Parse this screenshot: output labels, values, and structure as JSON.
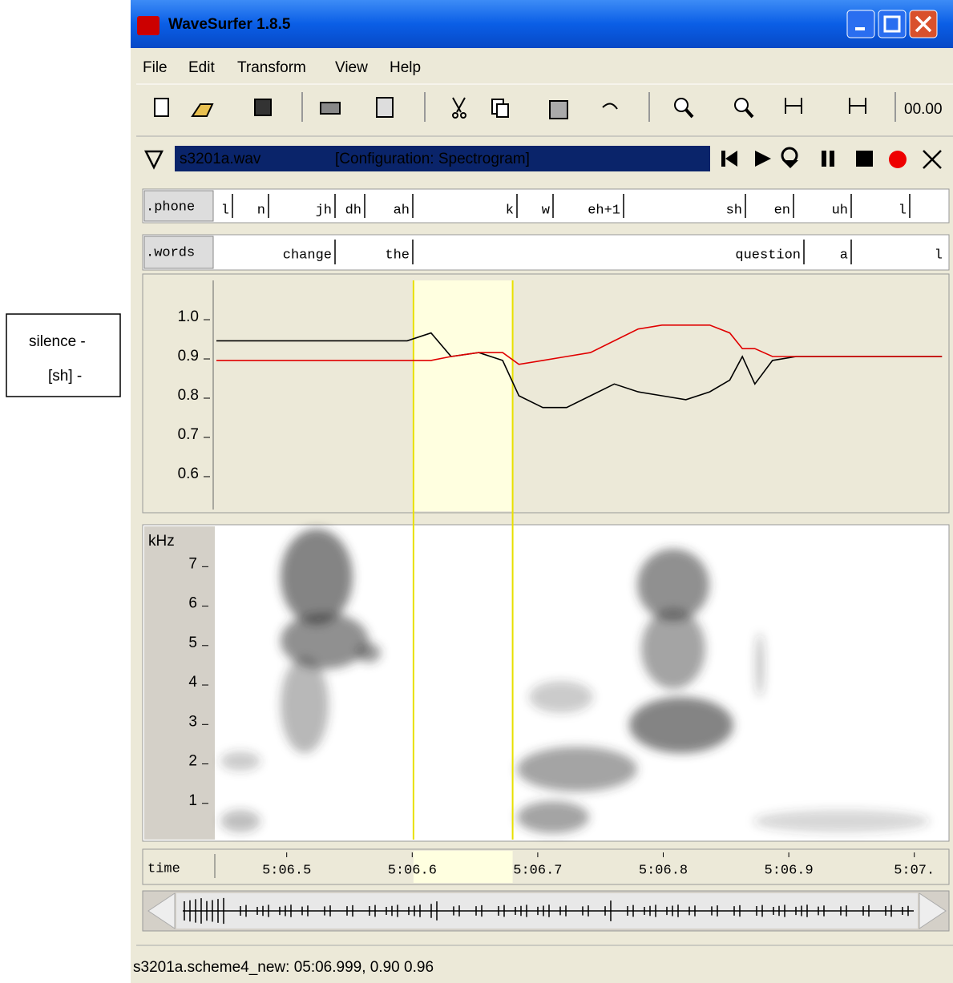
{
  "legend_box": {
    "lines": [
      "silence -",
      "[sh] -"
    ]
  },
  "window": {
    "title": "WaveSurfer 1.8.5"
  },
  "menu": [
    "File",
    "Edit",
    "Transform",
    "View",
    "Help"
  ],
  "toolbar": {
    "time": "00.00"
  },
  "sound_bar": {
    "file": "s3201a.wav",
    "configuration": "[Configuration: Spectrogram]"
  },
  "phone_tier": {
    "label": ".phone",
    "labels": [
      "l",
      "n",
      "jh",
      "dh",
      "ah",
      "k",
      "w",
      "eh+1",
      "sh",
      "en",
      "uh",
      "l"
    ]
  },
  "words_tier": {
    "label": ".words",
    "labels": [
      "change",
      "the",
      "question",
      "a",
      "l"
    ]
  },
  "pitch_panel": {
    "xlim": [
      306.444,
      307.027
    ],
    "ylim": [
      0.506,
      1.094
    ],
    "yticks": [
      {
        "value": 1.0,
        "label": "1.0"
      },
      {
        "value": 0.9,
        "label": "0.9"
      },
      {
        "value": 0.8,
        "label": "0.8"
      },
      {
        "value": 0.7,
        "label": "0.7"
      },
      {
        "value": 0.6,
        "label": "0.6"
      }
    ],
    "selection": [
      306.601,
      306.68
    ],
    "x": [
      306.444,
      306.596,
      306.615,
      306.631,
      306.653,
      306.672,
      306.685,
      306.704,
      306.723,
      306.742,
      306.761,
      306.78,
      306.799,
      306.818,
      306.837,
      306.853,
      306.863,
      306.873,
      306.887,
      306.906,
      307.022
    ],
    "series": [
      {
        "color": "#000000",
        "values": [
          0.94,
          0.94,
          0.96,
          0.9,
          0.91,
          0.89,
          0.8,
          0.77,
          0.77,
          0.8,
          0.83,
          0.81,
          0.8,
          0.79,
          0.81,
          0.84,
          0.9,
          0.83,
          0.89,
          0.9,
          0.9
        ]
      },
      {
        "color": "#e00000",
        "values": [
          0.89,
          0.89,
          0.89,
          0.9,
          0.91,
          0.91,
          0.88,
          0.89,
          0.9,
          0.91,
          0.94,
          0.97,
          0.98,
          0.98,
          0.98,
          0.96,
          0.92,
          0.92,
          0.9,
          0.9,
          0.9
        ]
      }
    ]
  },
  "spectrogram_panel": {
    "unit": "kHz",
    "ylim": [
      0,
      7.9
    ],
    "yticks": [
      1,
      2,
      3,
      4,
      5,
      6,
      7
    ]
  },
  "time_axis": {
    "label": "time",
    "ticks": [
      {
        "value": 306.5,
        "label": "5:06.5"
      },
      {
        "value": 306.6,
        "label": "5:06.6"
      },
      {
        "value": 306.7,
        "label": "5:06.7"
      },
      {
        "value": 306.8,
        "label": "5:06.8"
      },
      {
        "value": 306.9,
        "label": "5:06.9"
      },
      {
        "value": 307.0,
        "label": "5:07."
      }
    ]
  },
  "status_bar": {
    "text": "s3201a.scheme4_new: 05:06.999, 0.90 0.96"
  }
}
